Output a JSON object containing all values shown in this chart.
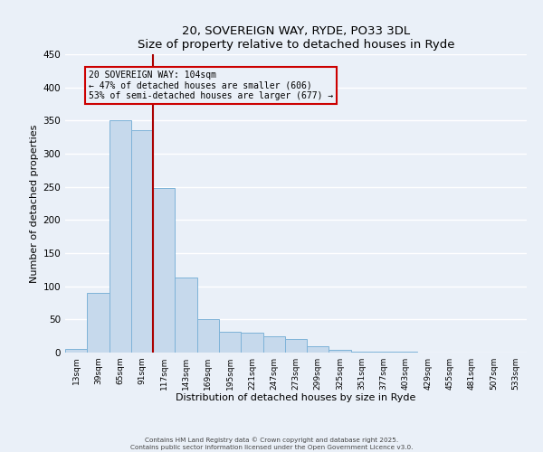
{
  "title": "20, SOVEREIGN WAY, RYDE, PO33 3DL",
  "subtitle": "Size of property relative to detached houses in Ryde",
  "xlabel": "Distribution of detached houses by size in Ryde",
  "ylabel": "Number of detached properties",
  "bar_labels": [
    "13sqm",
    "39sqm",
    "65sqm",
    "91sqm",
    "117sqm",
    "143sqm",
    "169sqm",
    "195sqm",
    "221sqm",
    "247sqm",
    "273sqm",
    "299sqm",
    "325sqm",
    "351sqm",
    "377sqm",
    "403sqm",
    "429sqm",
    "455sqm",
    "481sqm",
    "507sqm",
    "533sqm"
  ],
  "bar_values": [
    6,
    90,
    350,
    335,
    248,
    113,
    50,
    32,
    30,
    24,
    21,
    9,
    4,
    1,
    1,
    1,
    0,
    0,
    0,
    0,
    0
  ],
  "bar_color": "#c6d9ec",
  "bar_edgecolor": "#7eb3d8",
  "ylim": [
    0,
    450
  ],
  "yticks": [
    0,
    50,
    100,
    150,
    200,
    250,
    300,
    350,
    400,
    450
  ],
  "vline_color": "#aa0000",
  "annotation_text": "20 SOVEREIGN WAY: 104sqm\n← 47% of detached houses are smaller (606)\n53% of semi-detached houses are larger (677) →",
  "annotation_box_edgecolor": "#cc0000",
  "footer_line1": "Contains HM Land Registry data © Crown copyright and database right 2025.",
  "footer_line2": "Contains public sector information licensed under the Open Government Licence v3.0.",
  "background_color": "#eaf0f8",
  "grid_color": "#ffffff",
  "footer_color": "#444444"
}
